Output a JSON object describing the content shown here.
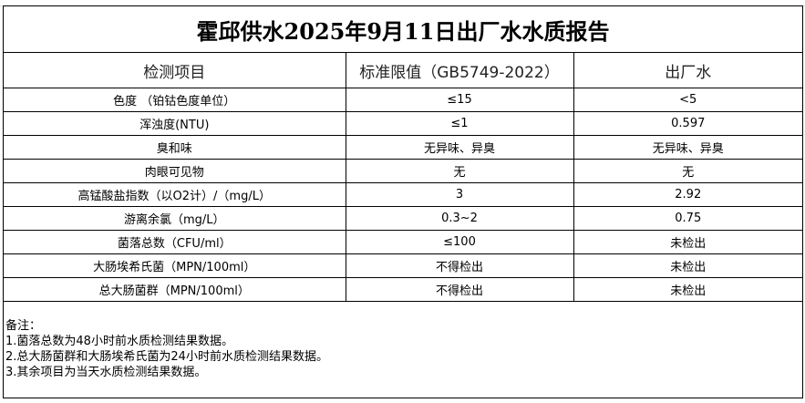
{
  "title": "霍邱供水2025年9月11日出厂水水质报告",
  "headers": [
    "检测项目",
    "标准限值（GB5749-2022）",
    "出厂水"
  ],
  "rows": [
    [
      "色度 （铂钴色度单位）",
      "≤15",
      "<5"
    ],
    [
      "浑浊度(NTU)",
      "≤1",
      "0.597"
    ],
    [
      "臭和味",
      "无异味、异臭",
      "无异味、异臭"
    ],
    [
      "肉眼可见物",
      "无",
      "无"
    ],
    [
      "高锰酸盐指数（以O2计）/（mg/L）",
      "3",
      "2.92"
    ],
    [
      "游离余氯（mg/L）",
      "0.3~2",
      "0.75"
    ],
    [
      "菌落总数（CFU/ml）",
      "≤100",
      "未检出"
    ],
    [
      "大肠埃希氏菌（MPN/100ml）",
      "不得检出",
      "未检出"
    ],
    [
      "总大肠菌群（MPN/100ml）",
      "不得检出",
      "未检出"
    ]
  ],
  "notes": [
    "备注：",
    "1.菌落总数为48小时前水质检测结果数据。",
    "2.总大肠菌群和大肠埃希氏菌为24小时前水质检测结果数据。",
    "3.其余项目为当天水质检测结果数据。"
  ]
}
